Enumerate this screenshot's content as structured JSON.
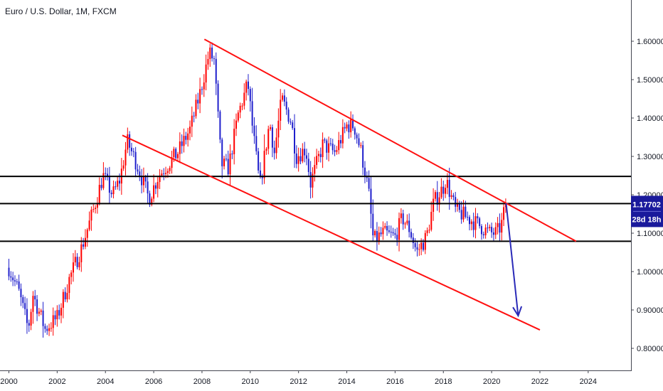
{
  "chart_data": {
    "type": "candlestick",
    "title": "Euro / U.S. Dollar, 1M, FXCM",
    "xlim": [
      1999.8,
      2026.0
    ],
    "ylim": [
      0.75,
      1.64
    ],
    "x_ticks": [
      2000,
      2002,
      2004,
      2006,
      2008,
      2010,
      2012,
      2014,
      2016,
      2018,
      2020,
      2022,
      2024
    ],
    "y_ticks": [
      {
        "value": 0.8,
        "label": "0.80000"
      },
      {
        "value": 0.9,
        "label": "0.90000"
      },
      {
        "value": 1.0,
        "label": "1.00000"
      },
      {
        "value": 1.1,
        "label": "1.10000"
      },
      {
        "value": 1.2,
        "label": "1.20000"
      },
      {
        "value": 1.3,
        "label": "1.30000"
      },
      {
        "value": 1.4,
        "label": "1.40000"
      },
      {
        "value": 1.5,
        "label": "1.50000"
      },
      {
        "value": 1.6,
        "label": "1.60000"
      }
    ],
    "price_path": [
      [
        2000.0,
        1.01
      ],
      [
        2000.4,
        0.95
      ],
      [
        2000.8,
        0.85
      ],
      [
        2001.0,
        0.94
      ],
      [
        2001.5,
        0.85
      ],
      [
        2002.0,
        0.88
      ],
      [
        2002.5,
        0.98
      ],
      [
        2003.0,
        1.06
      ],
      [
        2003.5,
        1.16
      ],
      [
        2003.9,
        1.25
      ],
      [
        2004.3,
        1.2
      ],
      [
        2004.6,
        1.24
      ],
      [
        2004.9,
        1.34
      ],
      [
        2005.3,
        1.28
      ],
      [
        2005.8,
        1.19
      ],
      [
        2006.2,
        1.25
      ],
      [
        2006.6,
        1.28
      ],
      [
        2007.0,
        1.31
      ],
      [
        2007.5,
        1.37
      ],
      [
        2007.9,
        1.46
      ],
      [
        2008.3,
        1.57
      ],
      [
        2008.5,
        1.55
      ],
      [
        2008.8,
        1.28
      ],
      [
        2009.1,
        1.27
      ],
      [
        2009.5,
        1.41
      ],
      [
        2009.9,
        1.49
      ],
      [
        2010.1,
        1.37
      ],
      [
        2010.4,
        1.22
      ],
      [
        2010.8,
        1.39
      ],
      [
        2011.0,
        1.31
      ],
      [
        2011.3,
        1.45
      ],
      [
        2011.7,
        1.39
      ],
      [
        2011.9,
        1.3
      ],
      [
        2012.3,
        1.32
      ],
      [
        2012.5,
        1.23
      ],
      [
        2013.0,
        1.33
      ],
      [
        2013.5,
        1.31
      ],
      [
        2014.0,
        1.38
      ],
      [
        2014.3,
        1.38
      ],
      [
        2014.6,
        1.31
      ],
      [
        2014.9,
        1.21
      ],
      [
        2015.1,
        1.08
      ],
      [
        2015.5,
        1.1
      ],
      [
        2016.0,
        1.09
      ],
      [
        2016.3,
        1.14
      ],
      [
        2016.6,
        1.11
      ],
      [
        2016.9,
        1.05
      ],
      [
        2017.3,
        1.09
      ],
      [
        2017.6,
        1.18
      ],
      [
        2018.0,
        1.22
      ],
      [
        2018.1,
        1.24
      ],
      [
        2018.5,
        1.16
      ],
      [
        2019.0,
        1.14
      ],
      [
        2019.5,
        1.12
      ],
      [
        2019.9,
        1.1
      ],
      [
        2020.2,
        1.1
      ],
      [
        2020.4,
        1.12
      ],
      [
        2020.6,
        1.18
      ]
    ],
    "horizontal_lines": [
      1.248,
      1.177,
      1.079
    ],
    "channel_lines": [
      {
        "from": [
          2008.1,
          1.605
        ],
        "to": [
          2023.5,
          1.079
        ]
      },
      {
        "from": [
          2004.7,
          1.355
        ],
        "to": [
          2022.0,
          0.848
        ]
      }
    ],
    "projection_arrow": {
      "from": [
        2020.6,
        1.178
      ],
      "to": [
        2021.1,
        0.885
      ]
    },
    "current_price": {
      "value": 1.177,
      "label": "1.17702",
      "countdown": "28d 18h"
    },
    "colors": {
      "bull": "#ff0000",
      "bear": "#1f1fcc",
      "channel": "#ff1010",
      "hline": "#000000",
      "arrow": "#2a2ab8",
      "tag_bg": "#1a1a9c",
      "axis": "#434651"
    }
  }
}
